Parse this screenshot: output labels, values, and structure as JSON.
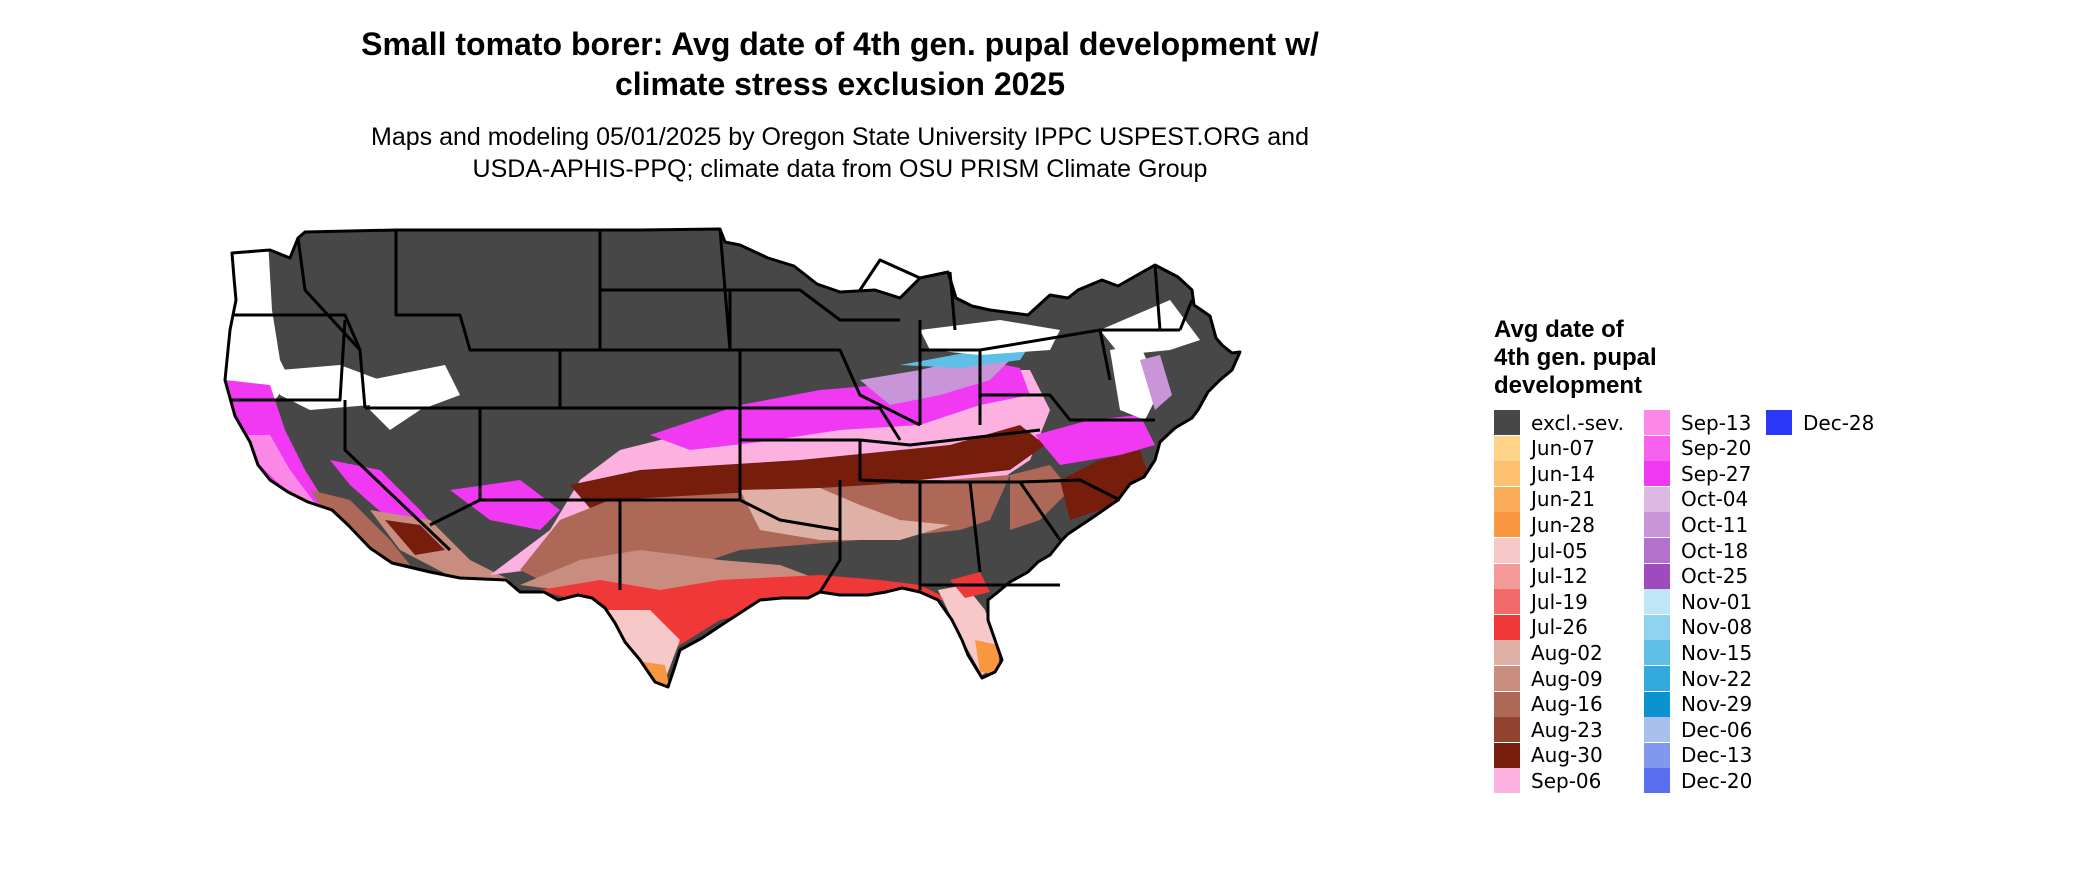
{
  "title_line1": "Small tomato borer: Avg date of 4th gen. pupal development w/",
  "title_line2": "climate stress exclusion 2025",
  "subtitle_line1": "Maps and modeling 05/01/2025 by Oregon State University IPPC USPEST.ORG and",
  "subtitle_line2": "USDA-APHIS-PPQ; climate data from OSU PRISM Climate Group",
  "legend": {
    "title_lines": [
      "Avg date of",
      "4th gen. pupal",
      "development"
    ],
    "items": [
      {
        "label": "excl.-sev.",
        "color": "#474747"
      },
      {
        "label": "Jun-07",
        "color": "#fdd38a"
      },
      {
        "label": "Jun-14",
        "color": "#fcc070"
      },
      {
        "label": "Jun-21",
        "color": "#fbac58"
      },
      {
        "label": "Jun-28",
        "color": "#f99640"
      },
      {
        "label": "Jul-05",
        "color": "#f6c8c8"
      },
      {
        "label": "Jul-12",
        "color": "#f49a9a"
      },
      {
        "label": "Jul-19",
        "color": "#f26a6a"
      },
      {
        "label": "Jul-26",
        "color": "#f03838"
      },
      {
        "label": "Aug-02",
        "color": "#dfb0a5"
      },
      {
        "label": "Aug-09",
        "color": "#c98d80"
      },
      {
        "label": "Aug-16",
        "color": "#ad6858"
      },
      {
        "label": "Aug-23",
        "color": "#92432f"
      },
      {
        "label": "Aug-30",
        "color": "#761d0c"
      },
      {
        "label": "Sep-06",
        "color": "#fdb1e0"
      },
      {
        "label": "Sep-13",
        "color": "#fb88e6"
      },
      {
        "label": "Sep-20",
        "color": "#f760ec"
      },
      {
        "label": "Sep-27",
        "color": "#f139f4"
      },
      {
        "label": "Oct-04",
        "color": "#dcb8e2"
      },
      {
        "label": "Oct-11",
        "color": "#c895d8"
      },
      {
        "label": "Oct-18",
        "color": "#b471cc"
      },
      {
        "label": "Oct-25",
        "color": "#9e4bbd"
      },
      {
        "label": "Nov-01",
        "color": "#bfe6f7"
      },
      {
        "label": "Nov-08",
        "color": "#8fd3f0"
      },
      {
        "label": "Nov-15",
        "color": "#5fbfe6"
      },
      {
        "label": "Nov-22",
        "color": "#32aadc"
      },
      {
        "label": "Nov-29",
        "color": "#0a93cf"
      },
      {
        "label": "Dec-06",
        "color": "#a9bfee"
      },
      {
        "label": "Dec-13",
        "color": "#8298ee"
      },
      {
        "label": "Dec-20",
        "color": "#5a6ff0"
      },
      {
        "label": "Dec-28",
        "color": "#2a36f8"
      }
    ]
  },
  "map_colors": {
    "dark": "#474747",
    "white": "#ffffff",
    "border": "#000000",
    "magenta": "#f139f4",
    "pink": "#fb88e6",
    "light_pink": "#fdb1e0",
    "purple": "#c895d8",
    "aug30": "#761d0c",
    "aug23": "#92432f",
    "aug16": "#ad6858",
    "aug09": "#c98d80",
    "aug02": "#dfb0a5",
    "jul26": "#f03838",
    "jul05": "#f6c8c8",
    "jun28": "#f99640",
    "nov": "#5fbfe6"
  }
}
